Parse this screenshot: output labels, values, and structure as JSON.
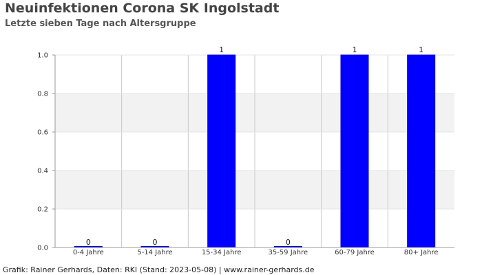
{
  "header": {
    "title": "Neuinfektionen Corona SK Ingolstadt",
    "subtitle": "Letzte sieben Tage nach Altersgruppe"
  },
  "footer": {
    "credit": "Grafik: Rainer Gerhards, Daten: RKI (Stand: 2023-05-08) | www.rainer-gerhards.de"
  },
  "colors": {
    "bar": "#0000ff",
    "band": "#f2f2f2",
    "grid": "#c8c8c8",
    "axis": "#999999"
  },
  "chart_data": {
    "type": "bar",
    "title": "Neuinfektionen Corona SK Ingolstadt",
    "subtitle": "Letzte sieben Tage nach Altersgruppe",
    "xlabel": "",
    "ylabel": "",
    "categories": [
      "0-4 Jahre",
      "5-14 Jahre",
      "15-34 Jahre",
      "35-59 Jahre",
      "60-79 Jahre",
      "80+ Jahre"
    ],
    "values": [
      0,
      0,
      1,
      0,
      1,
      1
    ],
    "data_labels": [
      "0",
      "0",
      "1",
      "0",
      "1",
      "1"
    ],
    "ylim": [
      0,
      1
    ],
    "yticks": [
      0.0,
      0.2,
      0.4,
      0.6,
      0.8,
      1.0
    ],
    "ytick_labels": [
      "0.0",
      "0.2",
      "0.4",
      "0.6",
      "0.8",
      "1.0"
    ],
    "grid": true,
    "legend": "none"
  }
}
